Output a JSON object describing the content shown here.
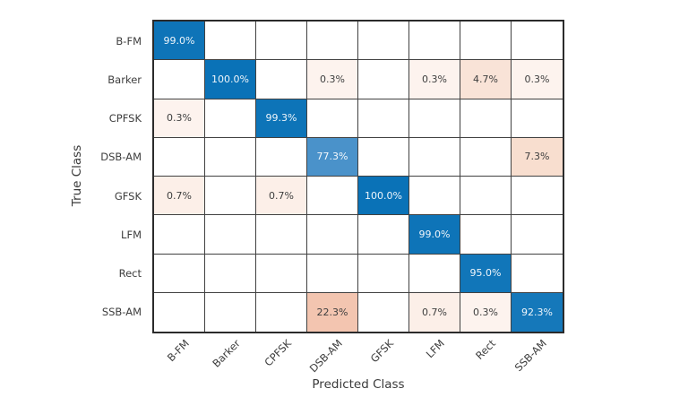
{
  "chart_data": {
    "type": "heatmap",
    "subtype": "confusion-matrix",
    "title": "",
    "xlabel": "Predicted Class",
    "ylabel": "True Class",
    "classes": [
      "B-FM",
      "Barker",
      "CPFSK",
      "DSB-AM",
      "GFSK",
      "LFM",
      "Rect",
      "SSB-AM"
    ],
    "normalization": "column-percent",
    "grid": "on",
    "matrix": [
      [
        99.0,
        null,
        null,
        null,
        null,
        null,
        null,
        null
      ],
      [
        null,
        100.0,
        null,
        0.3,
        null,
        0.3,
        4.7,
        0.3
      ],
      [
        0.3,
        null,
        99.3,
        null,
        null,
        null,
        null,
        null
      ],
      [
        null,
        null,
        null,
        77.3,
        null,
        null,
        null,
        7.3
      ],
      [
        0.7,
        null,
        0.7,
        null,
        100.0,
        null,
        null,
        null
      ],
      [
        null,
        null,
        null,
        null,
        null,
        99.0,
        null,
        null
      ],
      [
        null,
        null,
        null,
        null,
        null,
        null,
        95.0,
        null
      ],
      [
        null,
        null,
        null,
        22.3,
        null,
        0.7,
        0.3,
        92.3
      ]
    ],
    "cells": [
      [
        {
          "label": "99.0%",
          "bg": "#0e74b8",
          "fg": "#eef5fa"
        },
        null,
        null,
        null,
        null,
        null,
        null,
        null
      ],
      [
        null,
        {
          "label": "100.0%",
          "bg": "#0a72b7",
          "fg": "#eef5fa"
        },
        null,
        {
          "label": "0.3%",
          "bg": "#fdf3ee",
          "fg": "#3e3e3e"
        },
        null,
        {
          "label": "0.3%",
          "bg": "#fdf3ee",
          "fg": "#3e3e3e"
        },
        {
          "label": "4.7%",
          "bg": "#f9e3d7",
          "fg": "#3e3e3e"
        },
        {
          "label": "0.3%",
          "bg": "#fdf3ee",
          "fg": "#3e3e3e"
        }
      ],
      [
        {
          "label": "0.3%",
          "bg": "#fdf3ee",
          "fg": "#3e3e3e"
        },
        null,
        {
          "label": "99.3%",
          "bg": "#0d74b8",
          "fg": "#eef5fa"
        },
        null,
        null,
        null,
        null,
        null
      ],
      [
        null,
        null,
        null,
        {
          "label": "77.3%",
          "bg": "#4a92ca",
          "fg": "#f4f8fc"
        },
        null,
        null,
        null,
        {
          "label": "7.3%",
          "bg": "#f8decf",
          "fg": "#3e3e3e"
        }
      ],
      [
        {
          "label": "0.7%",
          "bg": "#fcefe8",
          "fg": "#3e3e3e"
        },
        null,
        {
          "label": "0.7%",
          "bg": "#fcefe8",
          "fg": "#3e3e3e"
        },
        null,
        {
          "label": "100.0%",
          "bg": "#0a72b7",
          "fg": "#eef5fa"
        },
        null,
        null,
        null
      ],
      [
        null,
        null,
        null,
        null,
        null,
        {
          "label": "99.0%",
          "bg": "#0e74b8",
          "fg": "#eef5fa"
        },
        null,
        null
      ],
      [
        null,
        null,
        null,
        null,
        null,
        null,
        {
          "label": "95.0%",
          "bg": "#1176b9",
          "fg": "#eef5fa"
        },
        null
      ],
      [
        null,
        null,
        null,
        {
          "label": "22.3%",
          "bg": "#f3c5b0",
          "fg": "#3e3e3e"
        },
        null,
        {
          "label": "0.7%",
          "bg": "#fcefe8",
          "fg": "#3e3e3e"
        },
        {
          "label": "0.3%",
          "bg": "#fdf3ee",
          "fg": "#3e3e3e"
        },
        {
          "label": "92.3%",
          "bg": "#1578ba",
          "fg": "#eef5fa"
        }
      ]
    ],
    "colors": {
      "diagonal_base": "#0a72b7",
      "offdiagonal_base": "#e0704a",
      "grid_line": "#414141",
      "outer_border": "#2b2b2b",
      "tick_text": "#3d3d3d",
      "axis_title_text": "#3a3a3a"
    }
  }
}
